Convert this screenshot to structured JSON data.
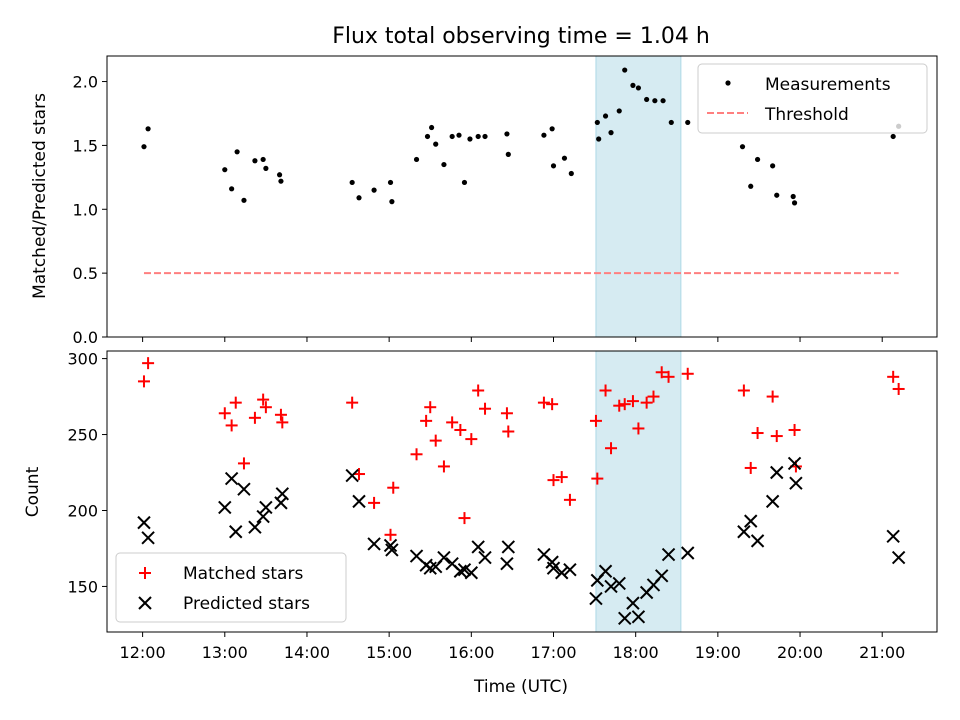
{
  "chart_data": [
    {
      "type": "scatter",
      "title": "Flux total observing time = 1.04 h",
      "ylabel": "Matched/Predicted stars",
      "xlabel": "",
      "ylim": [
        0,
        2.2
      ],
      "yticks": [
        "0.0",
        "0.5",
        "1.0",
        "1.5",
        "2.0"
      ],
      "xlim": [
        "11:34",
        "21:40"
      ],
      "x_tick_times": [
        "12:00",
        "13:00",
        "14:00",
        "15:00",
        "16:00",
        "17:00",
        "18:00",
        "19:00",
        "20:00",
        "21:00"
      ],
      "shaded_span": {
        "start": "17:31",
        "end": "18:33",
        "color": "#add8e6"
      },
      "legend": "top-right",
      "series": [
        {
          "name": "Measurements",
          "color": "#000000",
          "marker": "dot",
          "points": [
            [
              "12:01",
              1.49
            ],
            [
              "12:04",
              1.63
            ],
            [
              "13:00",
              1.31
            ],
            [
              "13:05",
              1.16
            ],
            [
              "13:09",
              1.45
            ],
            [
              "13:14",
              1.07
            ],
            [
              "13:22",
              1.38
            ],
            [
              "13:28",
              1.39
            ],
            [
              "13:30",
              1.32
            ],
            [
              "13:40",
              1.27
            ],
            [
              "13:41",
              1.22
            ],
            [
              "14:33",
              1.21
            ],
            [
              "14:38",
              1.09
            ],
            [
              "14:49",
              1.15
            ],
            [
              "15:01",
              1.21
            ],
            [
              "15:02",
              1.06
            ],
            [
              "15:20",
              1.39
            ],
            [
              "15:28",
              1.57
            ],
            [
              "15:31",
              1.64
            ],
            [
              "15:34",
              1.51
            ],
            [
              "15:40",
              1.35
            ],
            [
              "15:46",
              1.57
            ],
            [
              "15:51",
              1.58
            ],
            [
              "15:55",
              1.21
            ],
            [
              "15:59",
              1.55
            ],
            [
              "16:05",
              1.57
            ],
            [
              "16:10",
              1.57
            ],
            [
              "16:26",
              1.59
            ],
            [
              "16:27",
              1.43
            ],
            [
              "16:53",
              1.58
            ],
            [
              "16:59",
              1.63
            ],
            [
              "17:00",
              1.34
            ],
            [
              "17:08",
              1.4
            ],
            [
              "17:13",
              1.28
            ],
            [
              "17:32",
              1.68
            ],
            [
              "17:33",
              1.55
            ],
            [
              "17:38",
              1.73
            ],
            [
              "17:42",
              1.6
            ],
            [
              "17:48",
              1.77
            ],
            [
              "17:52",
              2.09
            ],
            [
              "17:58",
              1.97
            ],
            [
              "18:02",
              1.95
            ],
            [
              "18:08",
              1.86
            ],
            [
              "18:14",
              1.85
            ],
            [
              "18:20",
              1.85
            ],
            [
              "18:26",
              1.68
            ],
            [
              "18:38",
              1.68
            ],
            [
              "19:18",
              1.49
            ],
            [
              "19:24",
              1.18
            ],
            [
              "19:29",
              1.39
            ],
            [
              "19:40",
              1.34
            ],
            [
              "19:43",
              1.11
            ],
            [
              "19:55",
              1.1
            ],
            [
              "19:56",
              1.05
            ],
            [
              "21:08",
              1.57
            ],
            [
              "21:12",
              1.65
            ]
          ]
        },
        {
          "name": "Threshold",
          "color": "#ff7f7f",
          "style": "dashed",
          "value": 0.5,
          "x_range": [
            "12:01",
            "21:12"
          ]
        }
      ]
    },
    {
      "type": "scatter",
      "title": "",
      "xlabel": "Time (UTC)",
      "ylabel": "Count",
      "ylim": [
        120,
        305
      ],
      "yticks": [
        "150",
        "200",
        "250",
        "300"
      ],
      "x_tick_labels": [
        "12:00",
        "13:00",
        "14:00",
        "15:00",
        "16:00",
        "17:00",
        "18:00",
        "19:00",
        "20:00",
        "21:00"
      ],
      "legend": "bottom-left",
      "series": [
        {
          "name": "Matched stars",
          "color": "#ff0000",
          "marker": "plus",
          "points": [
            [
              "12:01",
              285
            ],
            [
              "12:04",
              297
            ],
            [
              "13:00",
              264
            ],
            [
              "13:05",
              256
            ],
            [
              "13:08",
              271
            ],
            [
              "13:14",
              231
            ],
            [
              "13:22",
              261
            ],
            [
              "13:28",
              273
            ],
            [
              "13:30",
              268
            ],
            [
              "13:41",
              263
            ],
            [
              "13:42",
              258
            ],
            [
              "14:33",
              271
            ],
            [
              "14:38",
              224
            ],
            [
              "14:49",
              205
            ],
            [
              "15:01",
              184
            ],
            [
              "15:03",
              215
            ],
            [
              "15:20",
              237
            ],
            [
              "15:27",
              259
            ],
            [
              "15:30",
              268
            ],
            [
              "15:34",
              246
            ],
            [
              "15:40",
              229
            ],
            [
              "15:46",
              258
            ],
            [
              "15:52",
              253
            ],
            [
              "15:55",
              195
            ],
            [
              "16:00",
              247
            ],
            [
              "16:05",
              279
            ],
            [
              "16:10",
              267
            ],
            [
              "16:26",
              264
            ],
            [
              "16:27",
              252
            ],
            [
              "16:53",
              271
            ],
            [
              "16:59",
              270
            ],
            [
              "17:00",
              220
            ],
            [
              "17:06",
              222
            ],
            [
              "17:12",
              207
            ],
            [
              "17:31",
              259
            ],
            [
              "17:32",
              221
            ],
            [
              "17:38",
              279
            ],
            [
              "17:42",
              241
            ],
            [
              "17:48",
              269
            ],
            [
              "17:52",
              270
            ],
            [
              "17:58",
              272
            ],
            [
              "18:02",
              254
            ],
            [
              "18:08",
              271
            ],
            [
              "18:13",
              275
            ],
            [
              "18:19",
              291
            ],
            [
              "18:24",
              288
            ],
            [
              "18:38",
              290
            ],
            [
              "19:19",
              279
            ],
            [
              "19:24",
              228
            ],
            [
              "19:29",
              251
            ],
            [
              "19:40",
              275
            ],
            [
              "19:43",
              249
            ],
            [
              "19:56",
              253
            ],
            [
              "19:57",
              229
            ],
            [
              "21:08",
              288
            ],
            [
              "21:12",
              280
            ]
          ]
        },
        {
          "name": "Predicted stars",
          "color": "#000000",
          "marker": "x",
          "points": [
            [
              "12:01",
              192
            ],
            [
              "12:04",
              182
            ],
            [
              "13:00",
              202
            ],
            [
              "13:05",
              221
            ],
            [
              "13:08",
              186
            ],
            [
              "13:14",
              214
            ],
            [
              "13:22",
              189
            ],
            [
              "13:28",
              196
            ],
            [
              "13:30",
              202
            ],
            [
              "13:41",
              205
            ],
            [
              "13:42",
              211
            ],
            [
              "14:33",
              223
            ],
            [
              "14:38",
              206
            ],
            [
              "14:49",
              178
            ],
            [
              "15:01",
              177
            ],
            [
              "15:02",
              174
            ],
            [
              "15:20",
              170
            ],
            [
              "15:27",
              164
            ],
            [
              "15:30",
              162
            ],
            [
              "15:34",
              163
            ],
            [
              "15:40",
              169
            ],
            [
              "15:46",
              165
            ],
            [
              "15:52",
              160
            ],
            [
              "15:55",
              161
            ],
            [
              "16:00",
              159
            ],
            [
              "16:05",
              176
            ],
            [
              "16:10",
              169
            ],
            [
              "16:26",
              165
            ],
            [
              "16:27",
              176
            ],
            [
              "16:53",
              171
            ],
            [
              "16:59",
              166
            ],
            [
              "17:00",
              162
            ],
            [
              "17:06",
              159
            ],
            [
              "17:12",
              161
            ],
            [
              "17:31",
              142
            ],
            [
              "17:32",
              154
            ],
            [
              "17:38",
              160
            ],
            [
              "17:42",
              150
            ],
            [
              "17:48",
              152
            ],
            [
              "17:52",
              129
            ],
            [
              "17:58",
              139
            ],
            [
              "18:02",
              130
            ],
            [
              "18:08",
              146
            ],
            [
              "18:13",
              151
            ],
            [
              "18:19",
              157
            ],
            [
              "18:24",
              171
            ],
            [
              "18:38",
              172
            ],
            [
              "19:19",
              186
            ],
            [
              "19:24",
              193
            ],
            [
              "19:29",
              180
            ],
            [
              "19:40",
              206
            ],
            [
              "19:43",
              225
            ],
            [
              "19:56",
              231
            ],
            [
              "19:57",
              218
            ],
            [
              "21:08",
              183
            ],
            [
              "21:12",
              169
            ]
          ]
        }
      ]
    }
  ]
}
